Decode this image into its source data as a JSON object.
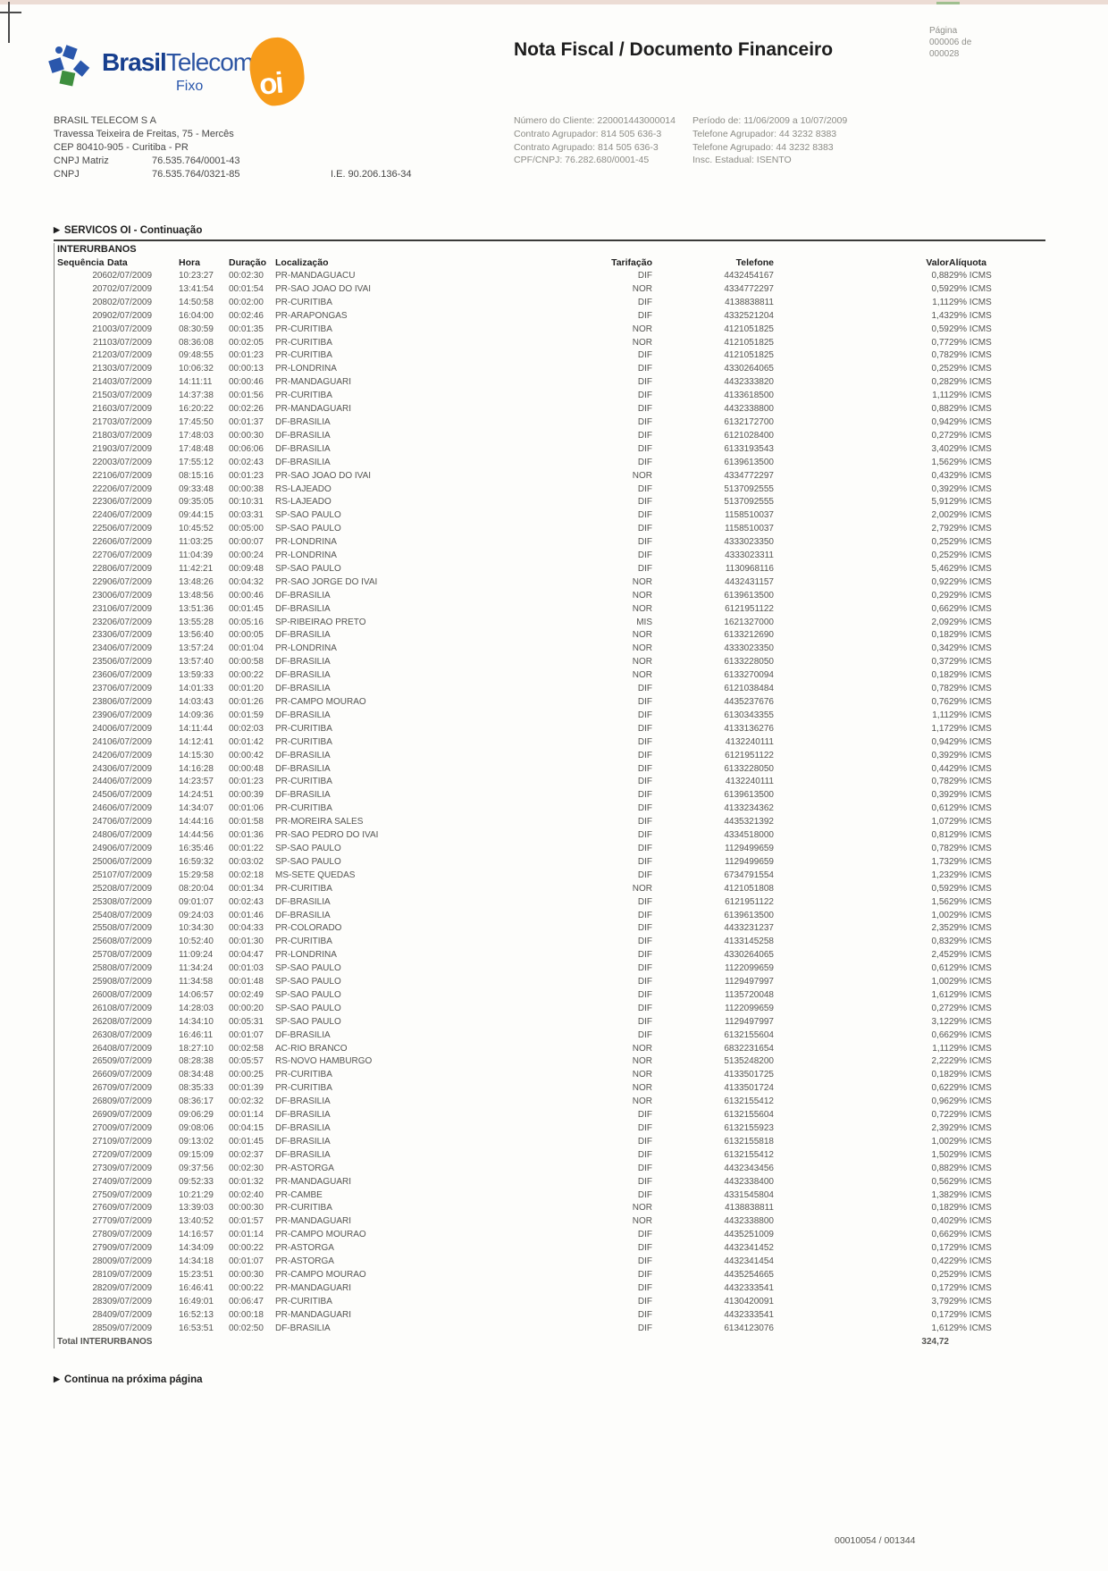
{
  "colors": {
    "brand_blue": "#173f8e",
    "oi_orange": "#f79b19",
    "rule_dark": "#3a3a38"
  },
  "header": {
    "title": "Nota Fiscal / Documento Financeiro",
    "logo_brand_bold": "Brasil",
    "logo_brand_light": "Telecom",
    "logo_sub": "Fixo",
    "oi_text": "oi",
    "page_label": "Página",
    "page_value_line1": "000006 de",
    "page_value_line2": "000028"
  },
  "company": {
    "name": "BRASIL TELECOM S A",
    "address1": "Travessa Teixeira de Freitas, 75 - Mercês",
    "address2": "CEP 80410-905 - Curitiba - PR",
    "cnpj_matriz_label": "CNPJ Matriz",
    "cnpj_matriz": "76.535.764/0001-43",
    "cnpj_label": "CNPJ",
    "cnpj": "76.535.764/0321-85",
    "ie": "I.E. 90.206.136-34"
  },
  "client_info": {
    "left": [
      "Número do Cliente: 220001443000014",
      "Contrato Agrupador: 814 505 636-3",
      "Contrato Agrupado: 814 505 636-3",
      "CPF/CNPJ: 76.282.680/0001-45"
    ],
    "right": [
      "Período de: 11/06/2009 a 10/07/2009",
      "Telefone Agrupador: 44 3232 8383",
      "Telefone Agrupado: 44 3232 8383",
      "Insc. Estadual: ISENTO"
    ]
  },
  "section": {
    "title": "SERVICOS OI - Continuação",
    "marker": "▶"
  },
  "table": {
    "group": "INTERURBANOS",
    "columns": [
      "Sequência",
      "Data",
      "Hora",
      "Duração",
      "Localização",
      "Tarifação",
      "Telefone",
      "Valor",
      "Alíquota"
    ],
    "rows": [
      [
        "206",
        "02/07/2009",
        "10:23:27",
        "00:02:30",
        "PR-MANDAGUACU",
        "DIF",
        "4432454167",
        "0,88",
        "29% ICMS"
      ],
      [
        "207",
        "02/07/2009",
        "13:41:54",
        "00:01:54",
        "PR-SAO JOAO DO IVAI",
        "NOR",
        "4334772297",
        "0,59",
        "29% ICMS"
      ],
      [
        "208",
        "02/07/2009",
        "14:50:58",
        "00:02:00",
        "PR-CURITIBA",
        "DIF",
        "4138838811",
        "1,11",
        "29% ICMS"
      ],
      [
        "209",
        "02/07/2009",
        "16:04:00",
        "00:02:46",
        "PR-ARAPONGAS",
        "DIF",
        "4332521204",
        "1,43",
        "29% ICMS"
      ],
      [
        "210",
        "03/07/2009",
        "08:30:59",
        "00:01:35",
        "PR-CURITIBA",
        "NOR",
        "4121051825",
        "0,59",
        "29% ICMS"
      ],
      [
        "211",
        "03/07/2009",
        "08:36:08",
        "00:02:05",
        "PR-CURITIBA",
        "NOR",
        "4121051825",
        "0,77",
        "29% ICMS"
      ],
      [
        "212",
        "03/07/2009",
        "09:48:55",
        "00:01:23",
        "PR-CURITIBA",
        "DIF",
        "4121051825",
        "0,78",
        "29% ICMS"
      ],
      [
        "213",
        "03/07/2009",
        "10:06:32",
        "00:00:13",
        "PR-LONDRINA",
        "DIF",
        "4330264065",
        "0,25",
        "29% ICMS"
      ],
      [
        "214",
        "03/07/2009",
        "14:11:11",
        "00:00:46",
        "PR-MANDAGUARI",
        "DIF",
        "4432333820",
        "0,28",
        "29% ICMS"
      ],
      [
        "215",
        "03/07/2009",
        "14:37:38",
        "00:01:56",
        "PR-CURITIBA",
        "DIF",
        "4133618500",
        "1,11",
        "29% ICMS"
      ],
      [
        "216",
        "03/07/2009",
        "16:20:22",
        "00:02:26",
        "PR-MANDAGUARI",
        "DIF",
        "4432338800",
        "0,88",
        "29% ICMS"
      ],
      [
        "217",
        "03/07/2009",
        "17:45:50",
        "00:01:37",
        "DF-BRASILIA",
        "DIF",
        "6132172700",
        "0,94",
        "29% ICMS"
      ],
      [
        "218",
        "03/07/2009",
        "17:48:03",
        "00:00:30",
        "DF-BRASILIA",
        "DIF",
        "6121028400",
        "0,27",
        "29% ICMS"
      ],
      [
        "219",
        "03/07/2009",
        "17:48:48",
        "00:06:06",
        "DF-BRASILIA",
        "DIF",
        "6133193543",
        "3,40",
        "29% ICMS"
      ],
      [
        "220",
        "03/07/2009",
        "17:55:12",
        "00:02:43",
        "DF-BRASILIA",
        "DIF",
        "6139613500",
        "1,56",
        "29% ICMS"
      ],
      [
        "221",
        "06/07/2009",
        "08:15:16",
        "00:01:23",
        "PR-SAO JOAO DO IVAI",
        "NOR",
        "4334772297",
        "0,43",
        "29% ICMS"
      ],
      [
        "222",
        "06/07/2009",
        "09:33:48",
        "00:00:38",
        "RS-LAJEADO",
        "DIF",
        "5137092555",
        "0,39",
        "29% ICMS"
      ],
      [
        "223",
        "06/07/2009",
        "09:35:05",
        "00:10:31",
        "RS-LAJEADO",
        "DIF",
        "5137092555",
        "5,91",
        "29% ICMS"
      ],
      [
        "224",
        "06/07/2009",
        "09:44:15",
        "00:03:31",
        "SP-SAO PAULO",
        "DIF",
        "1158510037",
        "2,00",
        "29% ICMS"
      ],
      [
        "225",
        "06/07/2009",
        "10:45:52",
        "00:05:00",
        "SP-SAO PAULO",
        "DIF",
        "1158510037",
        "2,79",
        "29% ICMS"
      ],
      [
        "226",
        "06/07/2009",
        "11:03:25",
        "00:00:07",
        "PR-LONDRINA",
        "DIF",
        "4333023350",
        "0,25",
        "29% ICMS"
      ],
      [
        "227",
        "06/07/2009",
        "11:04:39",
        "00:00:24",
        "PR-LONDRINA",
        "DIF",
        "4333023311",
        "0,25",
        "29% ICMS"
      ],
      [
        "228",
        "06/07/2009",
        "11:42:21",
        "00:09:48",
        "SP-SAO PAULO",
        "DIF",
        "1130968116",
        "5,46",
        "29% ICMS"
      ],
      [
        "229",
        "06/07/2009",
        "13:48:26",
        "00:04:32",
        "PR-SAO JORGE DO IVAI",
        "NOR",
        "4432431157",
        "0,92",
        "29% ICMS"
      ],
      [
        "230",
        "06/07/2009",
        "13:48:56",
        "00:00:46",
        "DF-BRASILIA",
        "NOR",
        "6139613500",
        "0,29",
        "29% ICMS"
      ],
      [
        "231",
        "06/07/2009",
        "13:51:36",
        "00:01:45",
        "DF-BRASILIA",
        "NOR",
        "6121951122",
        "0,66",
        "29% ICMS"
      ],
      [
        "232",
        "06/07/2009",
        "13:55:28",
        "00:05:16",
        "SP-RIBEIRAO PRETO",
        "MIS",
        "1621327000",
        "2,09",
        "29% ICMS"
      ],
      [
        "233",
        "06/07/2009",
        "13:56:40",
        "00:00:05",
        "DF-BRASILIA",
        "NOR",
        "6133212690",
        "0,18",
        "29% ICMS"
      ],
      [
        "234",
        "06/07/2009",
        "13:57:24",
        "00:01:04",
        "PR-LONDRINA",
        "NOR",
        "4333023350",
        "0,34",
        "29% ICMS"
      ],
      [
        "235",
        "06/07/2009",
        "13:57:40",
        "00:00:58",
        "DF-BRASILIA",
        "NOR",
        "6133228050",
        "0,37",
        "29% ICMS"
      ],
      [
        "236",
        "06/07/2009",
        "13:59:33",
        "00:00:22",
        "DF-BRASILIA",
        "NOR",
        "6133270094",
        "0,18",
        "29% ICMS"
      ],
      [
        "237",
        "06/07/2009",
        "14:01:33",
        "00:01:20",
        "DF-BRASILIA",
        "DIF",
        "6121038484",
        "0,78",
        "29% ICMS"
      ],
      [
        "238",
        "06/07/2009",
        "14:03:43",
        "00:01:26",
        "PR-CAMPO MOURAO",
        "DIF",
        "4435237676",
        "0,76",
        "29% ICMS"
      ],
      [
        "239",
        "06/07/2009",
        "14:09:36",
        "00:01:59",
        "DF-BRASILIA",
        "DIF",
        "6130343355",
        "1,11",
        "29% ICMS"
      ],
      [
        "240",
        "06/07/2009",
        "14:11:44",
        "00:02:03",
        "PR-CURITIBA",
        "DIF",
        "4133136276",
        "1,17",
        "29% ICMS"
      ],
      [
        "241",
        "06/07/2009",
        "14:12:41",
        "00:01:42",
        "PR-CURITIBA",
        "DIF",
        "4132240111",
        "0,94",
        "29% ICMS"
      ],
      [
        "242",
        "06/07/2009",
        "14:15:30",
        "00:00:42",
        "DF-BRASILIA",
        "DIF",
        "6121951122",
        "0,39",
        "29% ICMS"
      ],
      [
        "243",
        "06/07/2009",
        "14:16:28",
        "00:00:48",
        "DF-BRASILIA",
        "DIF",
        "6133228050",
        "0,44",
        "29% ICMS"
      ],
      [
        "244",
        "06/07/2009",
        "14:23:57",
        "00:01:23",
        "PR-CURITIBA",
        "DIF",
        "4132240111",
        "0,78",
        "29% ICMS"
      ],
      [
        "245",
        "06/07/2009",
        "14:24:51",
        "00:00:39",
        "DF-BRASILIA",
        "DIF",
        "6139613500",
        "0,39",
        "29% ICMS"
      ],
      [
        "246",
        "06/07/2009",
        "14:34:07",
        "00:01:06",
        "PR-CURITIBA",
        "DIF",
        "4133234362",
        "0,61",
        "29% ICMS"
      ],
      [
        "247",
        "06/07/2009",
        "14:44:16",
        "00:01:58",
        "PR-MOREIRA SALES",
        "DIF",
        "4435321392",
        "1,07",
        "29% ICMS"
      ],
      [
        "248",
        "06/07/2009",
        "14:44:56",
        "00:01:36",
        "PR-SAO PEDRO DO IVAI",
        "DIF",
        "4334518000",
        "0,81",
        "29% ICMS"
      ],
      [
        "249",
        "06/07/2009",
        "16:35:46",
        "00:01:22",
        "SP-SAO PAULO",
        "DIF",
        "1129499659",
        "0,78",
        "29% ICMS"
      ],
      [
        "250",
        "06/07/2009",
        "16:59:32",
        "00:03:02",
        "SP-SAO PAULO",
        "DIF",
        "1129499659",
        "1,73",
        "29% ICMS"
      ],
      [
        "251",
        "07/07/2009",
        "15:29:58",
        "00:02:18",
        "MS-SETE QUEDAS",
        "DIF",
        "6734791554",
        "1,23",
        "29% ICMS"
      ],
      [
        "252",
        "08/07/2009",
        "08:20:04",
        "00:01:34",
        "PR-CURITIBA",
        "NOR",
        "4121051808",
        "0,59",
        "29% ICMS"
      ],
      [
        "253",
        "08/07/2009",
        "09:01:07",
        "00:02:43",
        "DF-BRASILIA",
        "DIF",
        "6121951122",
        "1,56",
        "29% ICMS"
      ],
      [
        "254",
        "08/07/2009",
        "09:24:03",
        "00:01:46",
        "DF-BRASILIA",
        "DIF",
        "6139613500",
        "1,00",
        "29% ICMS"
      ],
      [
        "255",
        "08/07/2009",
        "10:34:30",
        "00:04:33",
        "PR-COLORADO",
        "DIF",
        "4433231237",
        "2,35",
        "29% ICMS"
      ],
      [
        "256",
        "08/07/2009",
        "10:52:40",
        "00:01:30",
        "PR-CURITIBA",
        "DIF",
        "4133145258",
        "0,83",
        "29% ICMS"
      ],
      [
        "257",
        "08/07/2009",
        "11:09:24",
        "00:04:47",
        "PR-LONDRINA",
        "DIF",
        "4330264065",
        "2,45",
        "29% ICMS"
      ],
      [
        "258",
        "08/07/2009",
        "11:34:24",
        "00:01:03",
        "SP-SAO PAULO",
        "DIF",
        "1122099659",
        "0,61",
        "29% ICMS"
      ],
      [
        "259",
        "08/07/2009",
        "11:34:58",
        "00:01:48",
        "SP-SAO PAULO",
        "DIF",
        "1129497997",
        "1,00",
        "29% ICMS"
      ],
      [
        "260",
        "08/07/2009",
        "14:06:57",
        "00:02:49",
        "SP-SAO PAULO",
        "DIF",
        "1135720048",
        "1,61",
        "29% ICMS"
      ],
      [
        "261",
        "08/07/2009",
        "14:28:03",
        "00:00:20",
        "SP-SAO PAULO",
        "DIF",
        "1122099659",
        "0,27",
        "29% ICMS"
      ],
      [
        "262",
        "08/07/2009",
        "14:34:10",
        "00:05:31",
        "SP-SAO PAULO",
        "DIF",
        "1129497997",
        "3,12",
        "29% ICMS"
      ],
      [
        "263",
        "08/07/2009",
        "16:46:11",
        "00:01:07",
        "DF-BRASILIA",
        "DIF",
        "6132155604",
        "0,66",
        "29% ICMS"
      ],
      [
        "264",
        "08/07/2009",
        "18:27:10",
        "00:02:58",
        "AC-RIO BRANCO",
        "NOR",
        "6832231654",
        "1,11",
        "29% ICMS"
      ],
      [
        "265",
        "09/07/2009",
        "08:28:38",
        "00:05:57",
        "RS-NOVO HAMBURGO",
        "NOR",
        "5135248200",
        "2,22",
        "29% ICMS"
      ],
      [
        "266",
        "09/07/2009",
        "08:34:48",
        "00:00:25",
        "PR-CURITIBA",
        "NOR",
        "4133501725",
        "0,18",
        "29% ICMS"
      ],
      [
        "267",
        "09/07/2009",
        "08:35:33",
        "00:01:39",
        "PR-CURITIBA",
        "NOR",
        "4133501724",
        "0,62",
        "29% ICMS"
      ],
      [
        "268",
        "09/07/2009",
        "08:36:17",
        "00:02:32",
        "DF-BRASILIA",
        "NOR",
        "6132155412",
        "0,96",
        "29% ICMS"
      ],
      [
        "269",
        "09/07/2009",
        "09:06:29",
        "00:01:14",
        "DF-BRASILIA",
        "DIF",
        "6132155604",
        "0,72",
        "29% ICMS"
      ],
      [
        "270",
        "09/07/2009",
        "09:08:06",
        "00:04:15",
        "DF-BRASILIA",
        "DIF",
        "6132155923",
        "2,39",
        "29% ICMS"
      ],
      [
        "271",
        "09/07/2009",
        "09:13:02",
        "00:01:45",
        "DF-BRASILIA",
        "DIF",
        "6132155818",
        "1,00",
        "29% ICMS"
      ],
      [
        "272",
        "09/07/2009",
        "09:15:09",
        "00:02:37",
        "DF-BRASILIA",
        "DIF",
        "6132155412",
        "1,50",
        "29% ICMS"
      ],
      [
        "273",
        "09/07/2009",
        "09:37:56",
        "00:02:30",
        "PR-ASTORGA",
        "DIF",
        "4432343456",
        "0,88",
        "29% ICMS"
      ],
      [
        "274",
        "09/07/2009",
        "09:52:33",
        "00:01:32",
        "PR-MANDAGUARI",
        "DIF",
        "4432338400",
        "0,56",
        "29% ICMS"
      ],
      [
        "275",
        "09/07/2009",
        "10:21:29",
        "00:02:40",
        "PR-CAMBE",
        "DIF",
        "4331545804",
        "1,38",
        "29% ICMS"
      ],
      [
        "276",
        "09/07/2009",
        "13:39:03",
        "00:00:30",
        "PR-CURITIBA",
        "NOR",
        "4138838811",
        "0,18",
        "29% ICMS"
      ],
      [
        "277",
        "09/07/2009",
        "13:40:52",
        "00:01:57",
        "PR-MANDAGUARI",
        "NOR",
        "4432338800",
        "0,40",
        "29% ICMS"
      ],
      [
        "278",
        "09/07/2009",
        "14:16:57",
        "00:01:14",
        "PR-CAMPO MOURAO",
        "DIF",
        "4435251009",
        "0,66",
        "29% ICMS"
      ],
      [
        "279",
        "09/07/2009",
        "14:34:09",
        "00:00:22",
        "PR-ASTORGA",
        "DIF",
        "4432341452",
        "0,17",
        "29% ICMS"
      ],
      [
        "280",
        "09/07/2009",
        "14:34:18",
        "00:01:07",
        "PR-ASTORGA",
        "DIF",
        "4432341454",
        "0,42",
        "29% ICMS"
      ],
      [
        "281",
        "09/07/2009",
        "15:23:51",
        "00:00:30",
        "PR-CAMPO MOURAO",
        "DIF",
        "4435254665",
        "0,25",
        "29% ICMS"
      ],
      [
        "282",
        "09/07/2009",
        "16:46:41",
        "00:00:22",
        "PR-MANDAGUARI",
        "DIF",
        "4432333541",
        "0,17",
        "29% ICMS"
      ],
      [
        "283",
        "09/07/2009",
        "16:49:01",
        "00:06:47",
        "PR-CURITIBA",
        "DIF",
        "4130420091",
        "3,79",
        "29% ICMS"
      ],
      [
        "284",
        "09/07/2009",
        "16:52:13",
        "00:00:18",
        "PR-MANDAGUARI",
        "DIF",
        "4432333541",
        "0,17",
        "29% ICMS"
      ],
      [
        "285",
        "09/07/2009",
        "16:53:51",
        "00:02:50",
        "DF-BRASILIA",
        "DIF",
        "6134123076",
        "1,61",
        "29% ICMS"
      ]
    ],
    "total_label": "Total INTERURBANOS",
    "total_value": "324,72"
  },
  "footer": {
    "continua_marker": "▶",
    "continua": "Continua na próxima página",
    "page_ref": "00010054 / 001344"
  }
}
